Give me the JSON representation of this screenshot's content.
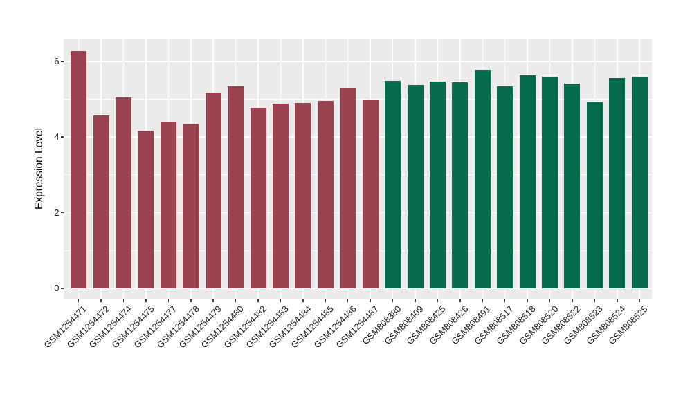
{
  "chart_data": {
    "type": "bar",
    "title": "",
    "xlabel": "",
    "ylabel": "Expression Level",
    "ylim": [
      0,
      6.6
    ],
    "yticks": [
      0,
      2,
      4,
      6
    ],
    "grid": true,
    "legend_position": "none",
    "plot_background": "#EBEBEB",
    "grid_color": "#FFFFFF",
    "tick_color": "#333333",
    "text_color": "#1A1A1A",
    "categories": [
      "GSM1254471",
      "GSM1254472",
      "GSM1254474",
      "GSM1254475",
      "GSM1254477",
      "GSM1254478",
      "GSM1254479",
      "GSM1254480",
      "GSM1254482",
      "GSM1254483",
      "GSM1254484",
      "GSM1254485",
      "GSM1254486",
      "GSM1254487",
      "GSM808380",
      "GSM808409",
      "GSM808425",
      "GSM808426",
      "GSM808491",
      "GSM808517",
      "GSM808518",
      "GSM808520",
      "GSM808522",
      "GSM808523",
      "GSM808524",
      "GSM808525"
    ],
    "values": [
      6.27,
      4.57,
      5.05,
      4.17,
      4.41,
      4.35,
      5.18,
      5.33,
      4.78,
      4.88,
      4.9,
      4.96,
      5.29,
      5.0,
      5.49,
      5.38,
      5.47,
      5.44,
      5.78,
      5.33,
      5.64,
      5.6,
      5.41,
      4.92,
      5.56,
      5.6
    ],
    "groups": [
      "red_group",
      "red_group",
      "red_group",
      "red_group",
      "red_group",
      "red_group",
      "red_group",
      "red_group",
      "red_group",
      "red_group",
      "red_group",
      "red_group",
      "red_group",
      "red_group",
      "green_group",
      "green_group",
      "green_group",
      "green_group",
      "green_group",
      "green_group",
      "green_group",
      "green_group",
      "green_group",
      "green_group",
      "green_group",
      "green_group"
    ],
    "group_colors": {
      "red_group": "#9B4250",
      "green_group": "#066B4C"
    }
  }
}
